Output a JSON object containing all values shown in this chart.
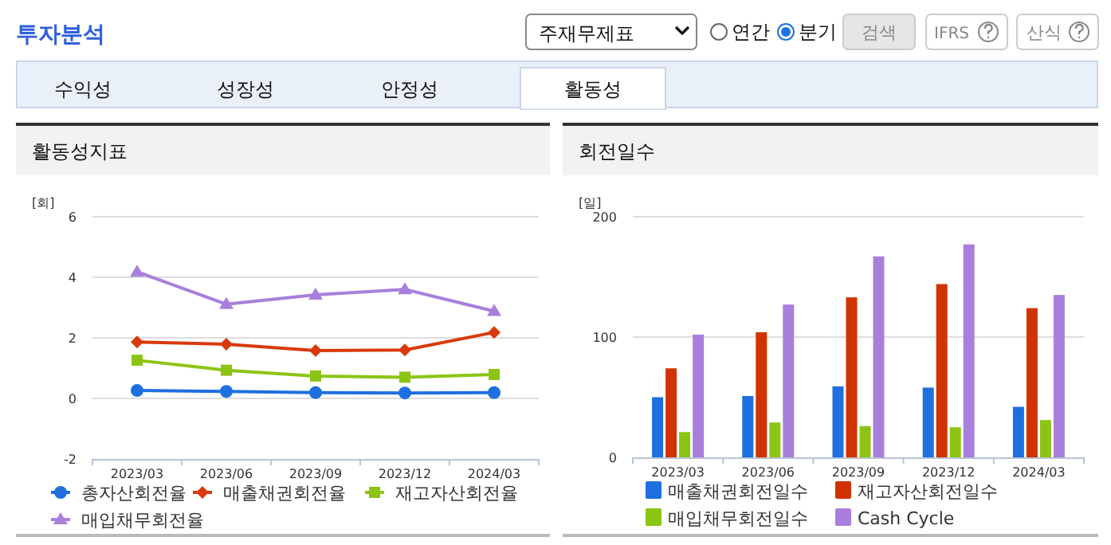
{
  "chart_data": [
    {
      "type": "other",
      "title": "투자분석",
      "annotations": [
        "주재무제표",
        "연간",
        "분기",
        "검색",
        "IFRS",
        "산식",
        "수익성",
        "성장성",
        "안정성",
        "활동성"
      ]
    },
    {
      "type": "line",
      "title": "활동성지표",
      "ylabel": "[회]",
      "categories": [
        "2023/03",
        "2023/06",
        "2023/09",
        "2023/12",
        "2024/03"
      ],
      "ylim": [
        -2,
        6
      ],
      "yticks": [
        -2,
        0,
        2,
        4,
        6
      ],
      "grid": "y",
      "legend": "bottom",
      "series": [
        {
          "name": "총자산회전율",
          "color": "#1f6fe0",
          "marker": "circle",
          "values": [
            0.26,
            0.23,
            0.19,
            0.18,
            0.19
          ]
        },
        {
          "name": "매출채권회전율",
          "color": "#d83a0c",
          "marker": "diamond",
          "values": [
            1.86,
            1.79,
            1.58,
            1.6,
            2.18
          ]
        },
        {
          "name": "재고자산회전율",
          "color": "#8cc414",
          "marker": "square",
          "values": [
            1.26,
            0.93,
            0.74,
            0.7,
            0.79
          ]
        },
        {
          "name": "매입채무회전율",
          "color": "#a87fdc",
          "marker": "triangle",
          "values": [
            4.18,
            3.11,
            3.42,
            3.6,
            2.88
          ]
        }
      ]
    },
    {
      "type": "bar",
      "title": "회전일수",
      "ylabel": "[일]",
      "categories": [
        "2023/03",
        "2023/06",
        "2023/09",
        "2023/12",
        "2024/03"
      ],
      "ylim": [
        0,
        200
      ],
      "yticks": [
        0,
        100,
        200
      ],
      "grid": "y",
      "legend": "bottom",
      "series": [
        {
          "name": "매출채권회전일수",
          "color": "#1f6fe0",
          "values": [
            50,
            51,
            59,
            58,
            42
          ]
        },
        {
          "name": "재고자산회전일수",
          "color": "#d03300",
          "values": [
            74,
            104,
            133,
            144,
            124
          ]
        },
        {
          "name": "매입채무회전일수",
          "color": "#8cc414",
          "values": [
            21,
            29,
            26,
            25,
            31
          ]
        },
        {
          "name": "Cash Cycle",
          "color": "#a87fdc",
          "values": [
            102,
            127,
            167,
            177,
            135
          ]
        }
      ]
    }
  ]
}
